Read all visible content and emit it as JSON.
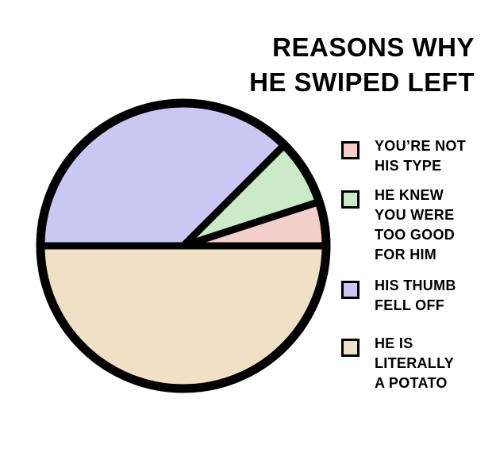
{
  "chart_data": {
    "type": "pie",
    "title": "REASONS WHY\nHE SWIPED LEFT",
    "categories": [
      "YOU’RE NOT\nHIS TYPE",
      "HE KNEW\nYOU WERE\nTOO GOOD\nFOR HIM",
      "HIS THUMB\nFELL OFF",
      "HE IS\nLITERALLY\nA POTATO"
    ],
    "values": [
      5,
      7.5,
      37.5,
      50
    ],
    "colors": [
      "#f3cfcb",
      "#c9ecc6",
      "#c8c8f2",
      "#efe0c6"
    ]
  }
}
